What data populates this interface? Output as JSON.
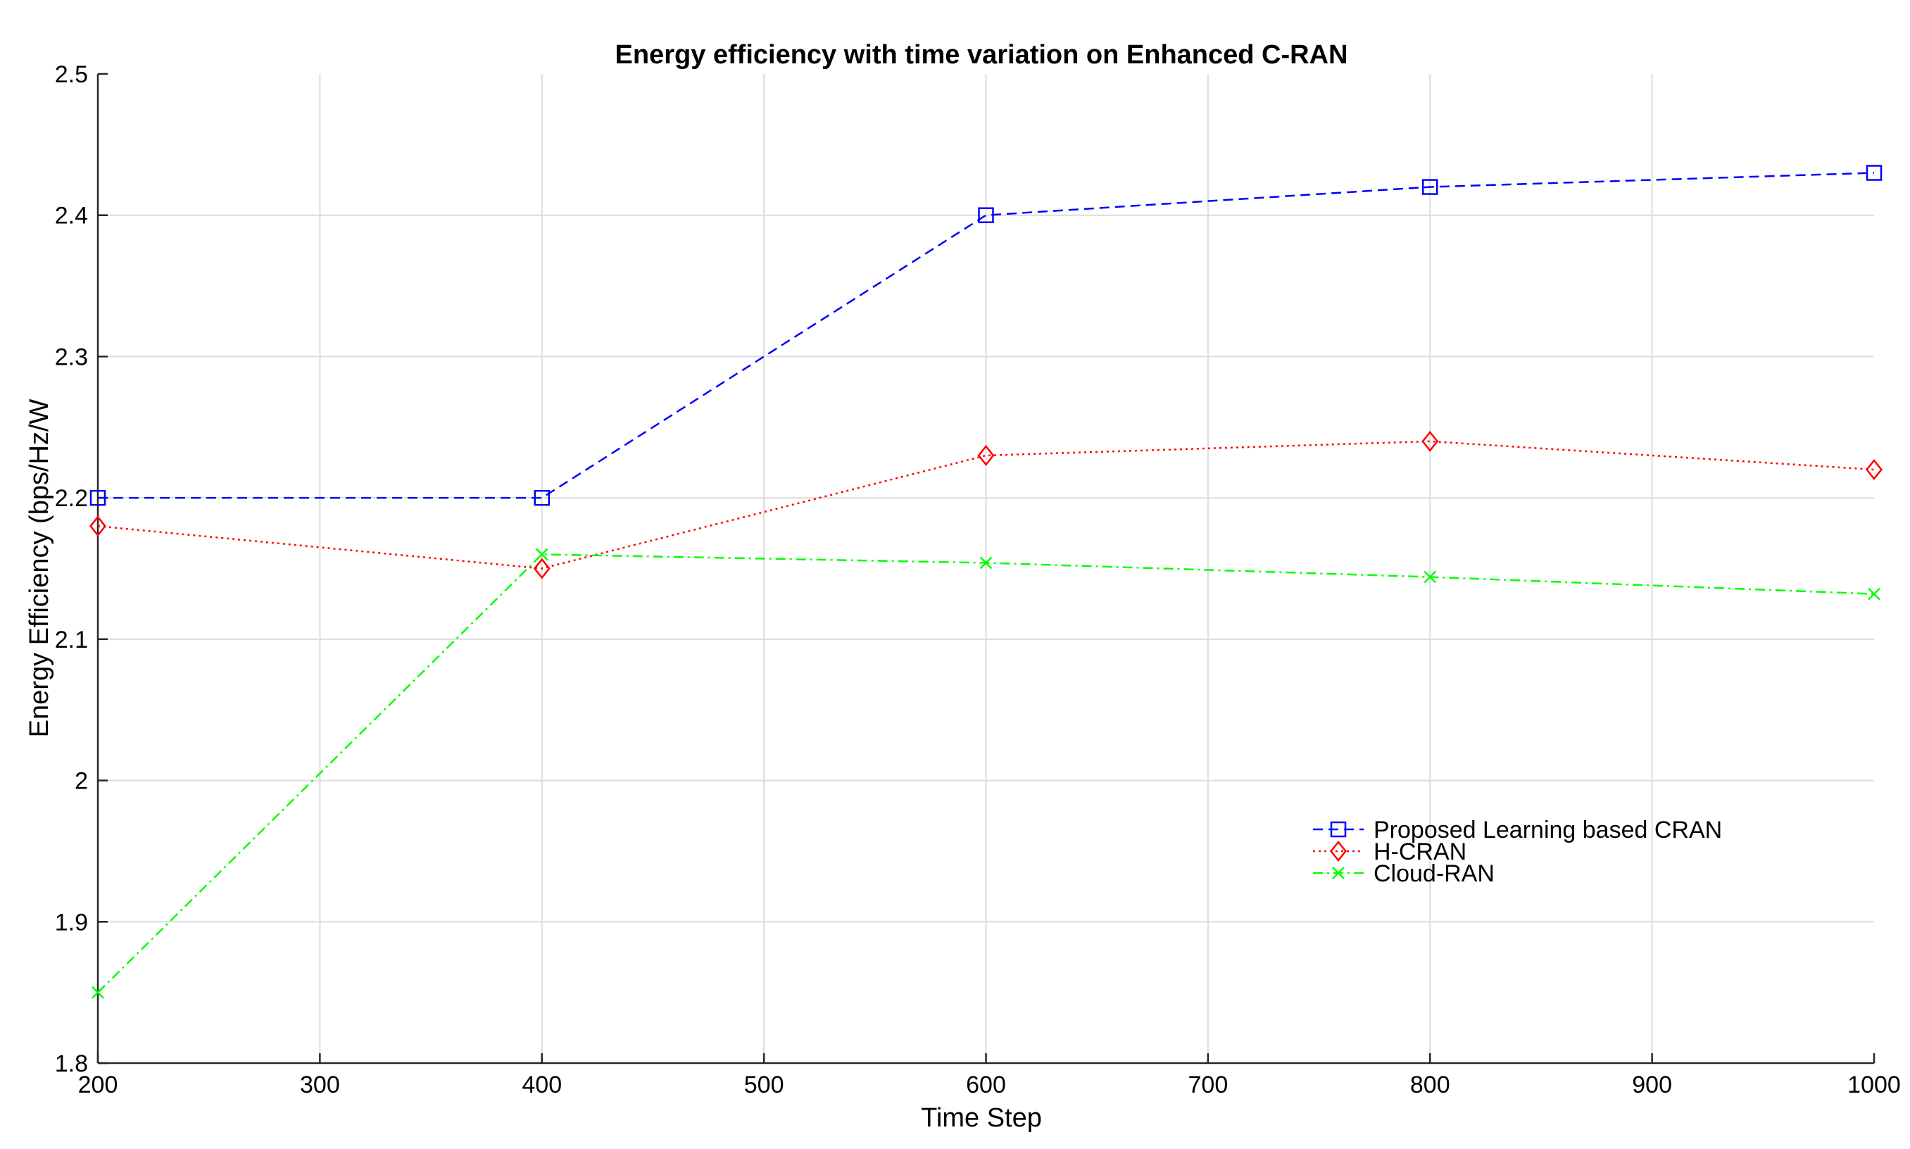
{
  "chart_data": {
    "type": "line",
    "title": "Energy efficiency with time variation on Enhanced C-RAN",
    "xlabel": "Time Step",
    "ylabel": "Energy Efficiency (bps/Hz/W",
    "xlim": [
      200,
      1000
    ],
    "ylim": [
      1.8,
      2.5
    ],
    "xticks": [
      200,
      300,
      400,
      500,
      600,
      700,
      800,
      900,
      1000
    ],
    "yticks": [
      1.8,
      1.9,
      2.0,
      2.1,
      2.2,
      2.3,
      2.4,
      2.5
    ],
    "xtick_labels": [
      "200",
      "300",
      "400",
      "500",
      "600",
      "700",
      "800",
      "900",
      "1000"
    ],
    "ytick_labels": [
      "1.8",
      "1.9",
      "2",
      "2.1",
      "2.2",
      "2.3",
      "2.4",
      "2.5"
    ],
    "grid": true,
    "legend_position": "center-right",
    "x": [
      200,
      400,
      600,
      800,
      1000
    ],
    "series": [
      {
        "name": "Proposed Learning based CRAN",
        "color": "#0000ff",
        "marker": "square",
        "dash": "dashed",
        "values": [
          2.2,
          2.2,
          2.4,
          2.42,
          2.43
        ]
      },
      {
        "name": "H-CRAN",
        "color": "#ff0000",
        "marker": "diamond",
        "dash": "dotted",
        "values": [
          2.18,
          2.15,
          2.23,
          2.24,
          2.22
        ]
      },
      {
        "name": "Cloud-RAN",
        "color": "#00ff00",
        "marker": "x",
        "dash": "dashdot",
        "values": [
          1.85,
          2.16,
          2.154,
          2.144,
          2.132
        ]
      }
    ]
  }
}
